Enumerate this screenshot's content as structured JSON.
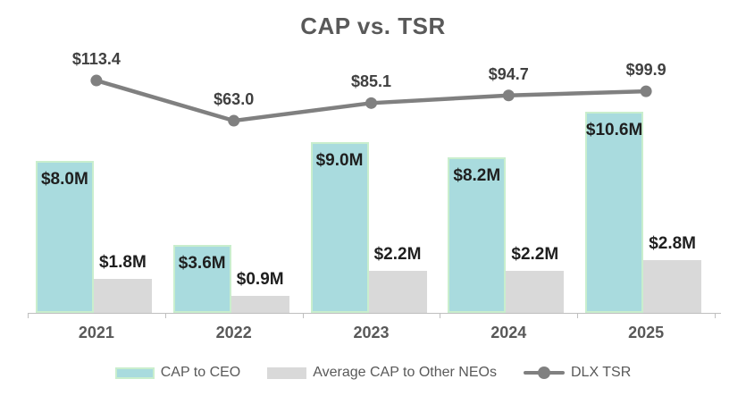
{
  "chart_data": {
    "type": "bar",
    "subtype": "clustered-bars-with-line-overlay",
    "title": "CAP vs. TSR",
    "xlabel": "",
    "ylabel": "",
    "categories": [
      "2021",
      "2022",
      "2023",
      "2024",
      "2025"
    ],
    "series": [
      {
        "name": "CAP to CEO",
        "type": "bar",
        "values": [
          8.0,
          3.6,
          9.0,
          8.2,
          10.6
        ],
        "labels": [
          "$8.0M",
          "$3.6M",
          "$9.0M",
          "$8.2M",
          "$10.6M"
        ],
        "label_placement": "inside-top",
        "color": "#a9dbde",
        "border_color": "#c9eecd"
      },
      {
        "name": "Average CAP to Other NEOs",
        "type": "bar",
        "values": [
          1.8,
          0.9,
          2.2,
          2.2,
          2.8
        ],
        "labels": [
          "$1.8M",
          "$0.9M",
          "$2.2M",
          "$2.2M",
          "$2.8M"
        ],
        "label_placement": "above",
        "color": "#d9d9d9",
        "border_color": "#d9d9d9"
      },
      {
        "name": "DLX TSR",
        "type": "line",
        "values": [
          113.4,
          63.0,
          85.1,
          94.7,
          99.9
        ],
        "labels": [
          "$113.4",
          "$63.0",
          "$85.1",
          "$94.7",
          "$99.9"
        ],
        "label_placement": "above",
        "color": "#808080"
      }
    ],
    "ylim_bars": [
      0,
      12
    ],
    "gridlines": false,
    "y_axis_visible": false,
    "legend_position": "bottom",
    "axis_color": "#bfbfbf",
    "colors": {
      "title_text": "#595959",
      "bar_label_text": "#1f1f1f",
      "line_label_text": "#404040",
      "x_label_text": "#595959",
      "legend_text": "#595959",
      "background": "#ffffff"
    }
  }
}
